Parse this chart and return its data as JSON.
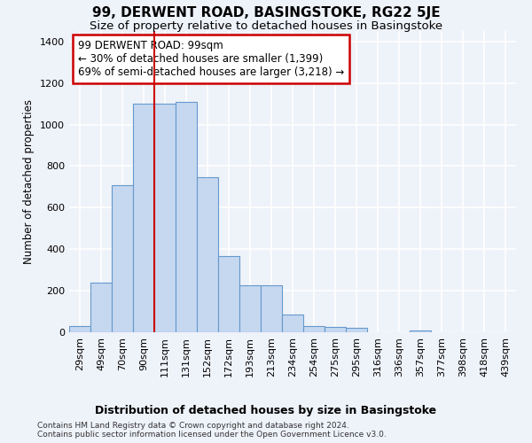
{
  "title": "99, DERWENT ROAD, BASINGSTOKE, RG22 5JE",
  "subtitle": "Size of property relative to detached houses in Basingstoke",
  "xlabel": "Distribution of detached houses by size in Basingstoke",
  "ylabel": "Number of detached properties",
  "footnote1": "Contains HM Land Registry data © Crown copyright and database right 2024.",
  "footnote2": "Contains public sector information licensed under the Open Government Licence v3.0.",
  "bin_labels": [
    "29sqm",
    "49sqm",
    "70sqm",
    "90sqm",
    "111sqm",
    "131sqm",
    "152sqm",
    "172sqm",
    "193sqm",
    "213sqm",
    "234sqm",
    "254sqm",
    "275sqm",
    "295sqm",
    "316sqm",
    "336sqm",
    "357sqm",
    "377sqm",
    "398sqm",
    "418sqm",
    "439sqm"
  ],
  "bar_values": [
    30,
    240,
    710,
    1100,
    1100,
    1110,
    745,
    365,
    225,
    225,
    85,
    30,
    25,
    20,
    0,
    0,
    10,
    0,
    0,
    0,
    0
  ],
  "bar_color": "#c5d8f0",
  "bar_edgecolor": "#6699cc",
  "vline_x_index": 3.5,
  "vline_color": "#cc0000",
  "annotation_line1": "99 DERWENT ROAD: 99sqm",
  "annotation_line2": "← 30% of detached houses are smaller (1,399)",
  "annotation_line3": "69% of semi-detached houses are larger (3,218) →",
  "annotation_box_color": "white",
  "annotation_box_edgecolor": "#cc0000",
  "ylim": [
    0,
    1450
  ],
  "yticks": [
    0,
    200,
    400,
    600,
    800,
    1000,
    1200,
    1400
  ],
  "background_color": "#eef2f9",
  "grid_color": "white",
  "title_fontsize": 11,
  "subtitle_fontsize": 9.5,
  "xlabel_fontsize": 9,
  "ylabel_fontsize": 8.5,
  "tick_fontsize": 8,
  "annotation_fontsize": 8.5,
  "footnote_fontsize": 6.5
}
